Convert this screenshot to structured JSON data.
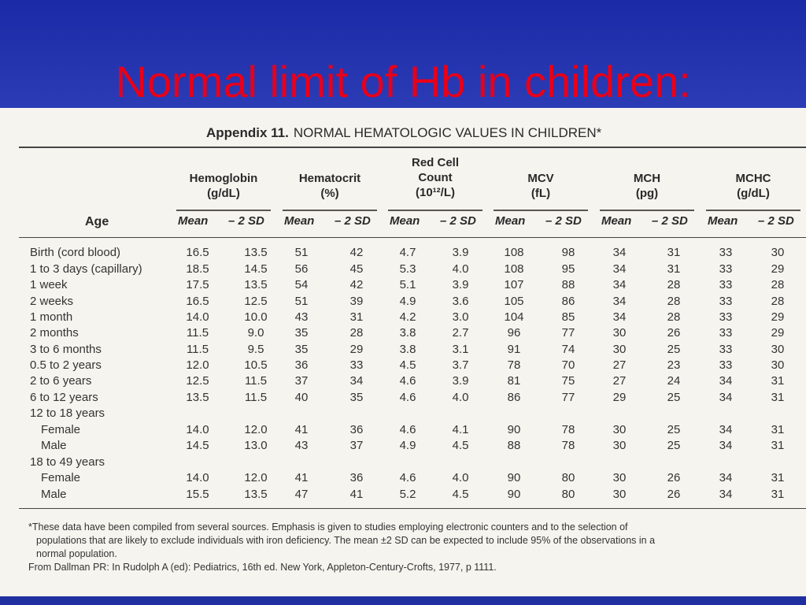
{
  "slide": {
    "title": "Normal limit of Hb in children:"
  },
  "appendix": {
    "label": "Appendix 11.",
    "title": "NORMAL HEMATOLOGIC VALUES IN CHILDREN*"
  },
  "table": {
    "age_header": "Age",
    "groups": [
      {
        "line1": "Hemoglobin",
        "line2": "(g/dL)"
      },
      {
        "line1": "Hematocrit",
        "line2": "(%)"
      },
      {
        "line1": "Red Cell",
        "line2": "Count",
        "line3": "(10¹²/L)"
      },
      {
        "line1": "MCV",
        "line2": "(fL)"
      },
      {
        "line1": "MCH",
        "line2": "(pg)"
      },
      {
        "line1": "MCHC",
        "line2": "(g/dL)"
      }
    ],
    "sub_mean": "Mean",
    "sub_sd": "– 2 SD",
    "rows": [
      {
        "age": "Birth (cord blood)",
        "indent": false,
        "v": [
          "16.5",
          "13.5",
          "51",
          "42",
          "4.7",
          "3.9",
          "108",
          "98",
          "34",
          "31",
          "33",
          "30"
        ]
      },
      {
        "age": "1 to 3 days (capillary)",
        "indent": false,
        "v": [
          "18.5",
          "14.5",
          "56",
          "45",
          "5.3",
          "4.0",
          "108",
          "95",
          "34",
          "31",
          "33",
          "29"
        ]
      },
      {
        "age": "1 week",
        "indent": false,
        "v": [
          "17.5",
          "13.5",
          "54",
          "42",
          "5.1",
          "3.9",
          "107",
          "88",
          "34",
          "28",
          "33",
          "28"
        ]
      },
      {
        "age": "2 weeks",
        "indent": false,
        "v": [
          "16.5",
          "12.5",
          "51",
          "39",
          "4.9",
          "3.6",
          "105",
          "86",
          "34",
          "28",
          "33",
          "28"
        ]
      },
      {
        "age": "1 month",
        "indent": false,
        "v": [
          "14.0",
          "10.0",
          "43",
          "31",
          "4.2",
          "3.0",
          "104",
          "85",
          "34",
          "28",
          "33",
          "29"
        ]
      },
      {
        "age": "2 months",
        "indent": false,
        "v": [
          "11.5",
          "9.0",
          "35",
          "28",
          "3.8",
          "2.7",
          "96",
          "77",
          "30",
          "26",
          "33",
          "29"
        ]
      },
      {
        "age": "3 to 6 months",
        "indent": false,
        "v": [
          "11.5",
          "9.5",
          "35",
          "29",
          "3.8",
          "3.1",
          "91",
          "74",
          "30",
          "25",
          "33",
          "30"
        ]
      },
      {
        "age": "0.5 to 2 years",
        "indent": false,
        "v": [
          "12.0",
          "10.5",
          "36",
          "33",
          "4.5",
          "3.7",
          "78",
          "70",
          "27",
          "23",
          "33",
          "30"
        ]
      },
      {
        "age": "2 to 6 years",
        "indent": false,
        "v": [
          "12.5",
          "11.5",
          "37",
          "34",
          "4.6",
          "3.9",
          "81",
          "75",
          "27",
          "24",
          "34",
          "31"
        ]
      },
      {
        "age": "6 to 12 years",
        "indent": false,
        "v": [
          "13.5",
          "11.5",
          "40",
          "35",
          "4.6",
          "4.0",
          "86",
          "77",
          "29",
          "25",
          "34",
          "31"
        ]
      },
      {
        "age": "12 to 18 years",
        "indent": false,
        "v": [
          "",
          "",
          "",
          "",
          "",
          "",
          "",
          "",
          "",
          "",
          "",
          ""
        ]
      },
      {
        "age": "Female",
        "indent": true,
        "v": [
          "14.0",
          "12.0",
          "41",
          "36",
          "4.6",
          "4.1",
          "90",
          "78",
          "30",
          "25",
          "34",
          "31"
        ]
      },
      {
        "age": "Male",
        "indent": true,
        "v": [
          "14.5",
          "13.0",
          "43",
          "37",
          "4.9",
          "4.5",
          "88",
          "78",
          "30",
          "25",
          "34",
          "31"
        ]
      },
      {
        "age": "18 to 49 years",
        "indent": false,
        "v": [
          "",
          "",
          "",
          "",
          "",
          "",
          "",
          "",
          "",
          "",
          "",
          ""
        ]
      },
      {
        "age": "Female",
        "indent": true,
        "v": [
          "14.0",
          "12.0",
          "41",
          "36",
          "4.6",
          "4.0",
          "90",
          "80",
          "30",
          "26",
          "34",
          "31"
        ]
      },
      {
        "age": "Male",
        "indent": true,
        "v": [
          "15.5",
          "13.5",
          "47",
          "41",
          "5.2",
          "4.5",
          "90",
          "80",
          "30",
          "26",
          "34",
          "31"
        ]
      }
    ]
  },
  "footnote": {
    "line1": "*These data have been compiled from several sources. Emphasis is given to studies employing electronic counters and to the selection of",
    "line2": "populations that are likely to exclude individuals with iron deficiency. The mean ±2 SD can be expected to include 95% of the observations in a",
    "line3": "normal population.",
    "source": "From Dallman PR: In Rudolph A (ed): Pediatrics, 16th ed. New York, Appleton-Century-Crofts, 1977, p 1111."
  }
}
